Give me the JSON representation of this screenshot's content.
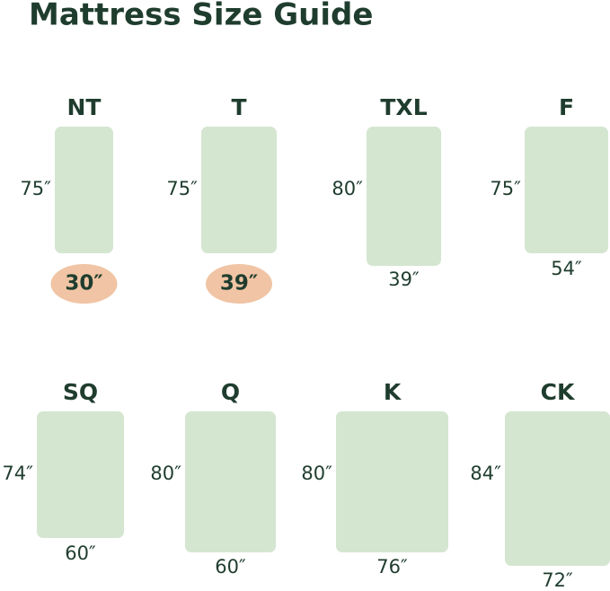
{
  "title": "Mattress Size Guide",
  "mattresses": [
    {
      "label": "NT",
      "length": "75″",
      "width": "30″"
    },
    {
      "label": "T",
      "length": "75″",
      "width": "39″"
    },
    {
      "label": "TXL",
      "length": "80″",
      "width": "39″"
    },
    {
      "label": "F",
      "length": "75″",
      "width": "54″"
    },
    {
      "label": "SQ",
      "length": "74″",
      "width": "60″"
    },
    {
      "label": "Q",
      "length": "80″",
      "width": "60″"
    },
    {
      "label": "K",
      "length": "80″",
      "width": "76″"
    },
    {
      "label": "CK",
      "length": "84″",
      "width": "72″"
    }
  ]
}
